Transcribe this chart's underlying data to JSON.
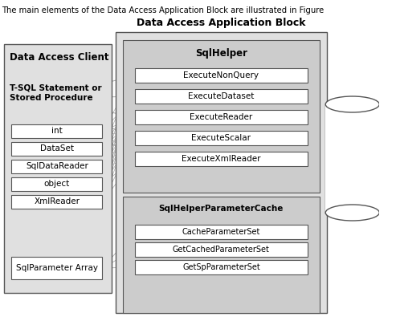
{
  "title_text": "The main elements of the Data Access Application Block are illustrated in Figure",
  "white": "#ffffff",
  "outer_bg": "#e0e0e0",
  "inner_bg": "#cccccc",
  "box_border": "#555555",
  "text_color": "#000000",
  "header_title": "Data Access Application Block",
  "client_title": "Data Access Client",
  "sql_helper_title": "SqlHelper",
  "param_cache_title": "SqlHelperParameterCache",
  "tsql_label": "T-SQL Statement or\nStored Procedure",
  "client_boxes": [
    "int",
    "DataSet",
    "SqlDataReader",
    "object",
    "XmlReader"
  ],
  "sql_param_label": "SqlParameter Array",
  "execute_methods": [
    "ExecuteNonQuery",
    "ExecuteDataset",
    "ExecuteReader",
    "ExecuteScalar",
    "ExecuteXmlReader"
  ],
  "cache_methods": [
    "CacheParameterSet",
    "GetCachedParameterSet",
    "GetSpParameterSet"
  ],
  "arrow_color": "#aaaaaa"
}
